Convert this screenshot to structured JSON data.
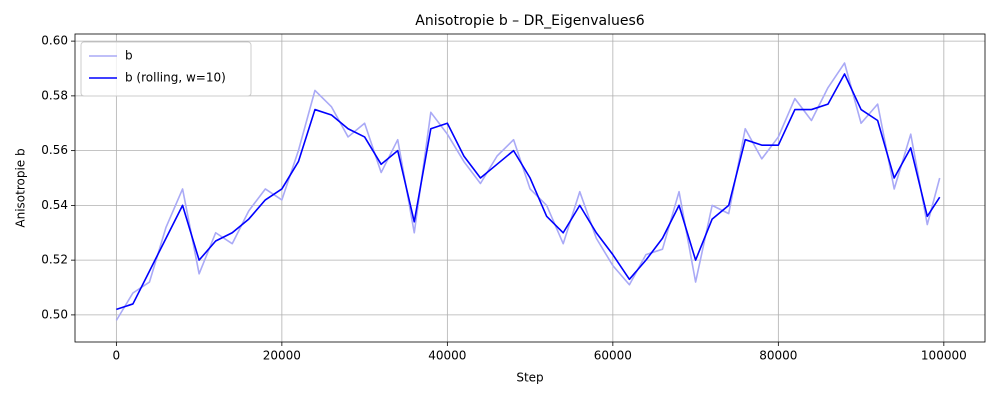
{
  "chart_data": {
    "type": "line",
    "title": "Anisotropie b – DR_Eigenvalues6",
    "x_label": "Step",
    "y_label": "Anisotropie b",
    "x": [
      0,
      2000,
      4000,
      6000,
      8000,
      10000,
      12000,
      14000,
      16000,
      18000,
      20000,
      22000,
      24000,
      26000,
      28000,
      30000,
      32000,
      34000,
      36000,
      38000,
      40000,
      42000,
      44000,
      46000,
      48000,
      50000,
      52000,
      54000,
      56000,
      58000,
      60000,
      62000,
      64000,
      66000,
      68000,
      70000,
      72000,
      74000,
      76000,
      78000,
      80000,
      82000,
      84000,
      86000,
      88000,
      90000,
      92000,
      94000,
      96000,
      98000,
      99500
    ],
    "series": [
      {
        "name": "b",
        "color": "#aaaaf6",
        "values": [
          0.498,
          0.508,
          0.512,
          0.532,
          0.546,
          0.515,
          0.53,
          0.526,
          0.538,
          0.546,
          0.542,
          0.56,
          0.582,
          0.576,
          0.565,
          0.57,
          0.552,
          0.564,
          0.53,
          0.574,
          0.566,
          0.556,
          0.548,
          0.558,
          0.564,
          0.546,
          0.54,
          0.526,
          0.545,
          0.528,
          0.518,
          0.511,
          0.522,
          0.524,
          0.545,
          0.512,
          0.54,
          0.537,
          0.568,
          0.557,
          0.565,
          0.579,
          0.571,
          0.583,
          0.592,
          0.57,
          0.577,
          0.546,
          0.566,
          0.533,
          0.55
        ]
      },
      {
        "name": "b (rolling, w=10)",
        "color": "#0000ff",
        "values": [
          0.502,
          0.504,
          0.516,
          0.528,
          0.54,
          0.52,
          0.527,
          0.53,
          0.535,
          0.542,
          0.546,
          0.556,
          0.575,
          0.573,
          0.568,
          0.565,
          0.555,
          0.56,
          0.534,
          0.568,
          0.57,
          0.558,
          0.55,
          0.555,
          0.56,
          0.55,
          0.536,
          0.53,
          0.54,
          0.53,
          0.522,
          0.513,
          0.52,
          0.528,
          0.54,
          0.52,
          0.535,
          0.54,
          0.564,
          0.562,
          0.562,
          0.575,
          0.575,
          0.577,
          0.588,
          0.575,
          0.571,
          0.55,
          0.561,
          0.536,
          0.543
        ]
      }
    ],
    "xlim": [
      -5000,
      104975
    ],
    "ylim": [
      0.4901,
      0.6026
    ],
    "xticks": [
      0,
      20000,
      40000,
      60000,
      80000,
      100000
    ],
    "yticks": [
      {
        "value": 0.5,
        "label": "0.50"
      },
      0.52,
      0.54,
      0.56,
      0.58,
      {
        "value": 0.6,
        "label": "0.60"
      }
    ],
    "grid": true,
    "legend": "upper left"
  }
}
